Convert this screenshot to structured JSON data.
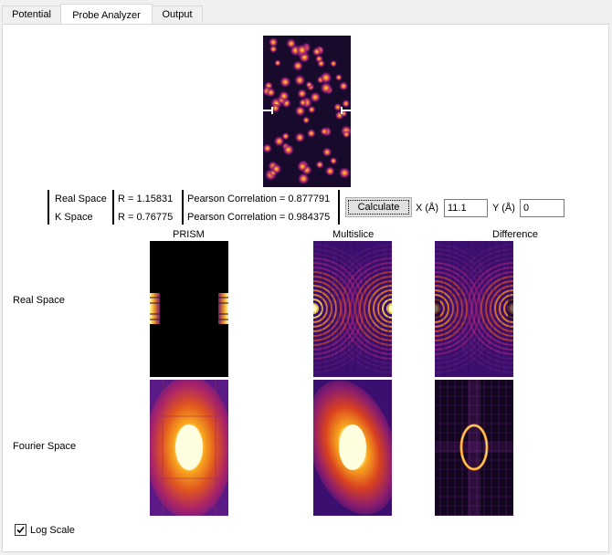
{
  "tabs": [
    {
      "label": "Potential"
    },
    {
      "label": "Probe Analyzer"
    },
    {
      "label": "Output"
    }
  ],
  "stats": {
    "real": {
      "label": "Real Space",
      "r": "R = 1.15831",
      "pearson": "Pearson Correlation = 0.877791"
    },
    "k": {
      "label": "K Space",
      "r": "R = 0.76775",
      "pearson": "Pearson Correlation = 0.984375"
    }
  },
  "controls": {
    "calculate_label": "Calculate",
    "x_label": "X (Å)",
    "x_value": "11.1",
    "y_label": "Y (Å)",
    "y_value": "0"
  },
  "columns": {
    "prism": "PRISM",
    "multislice": "Multislice",
    "difference": "Difference"
  },
  "rows": {
    "real": "Real Space",
    "fourier": "Fourier Space"
  },
  "log_scale": {
    "label": "Log Scale",
    "checked": true
  },
  "colors": {
    "colormap_dark": "#000000",
    "colormap_purple": "#3b0f70",
    "colormap_red": "#d83a2b",
    "colormap_orange": "#f5891c",
    "colormap_yellow": "#ffffb0"
  }
}
